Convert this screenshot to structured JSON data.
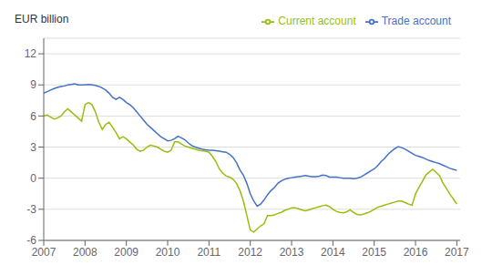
{
  "chart_data": {
    "type": "line",
    "ylabel": "EUR billion",
    "x": [
      2007.0,
      2007.083,
      2007.167,
      2007.25,
      2007.333,
      2007.417,
      2007.5,
      2007.583,
      2007.667,
      2007.75,
      2007.833,
      2007.917,
      2008.0,
      2008.083,
      2008.167,
      2008.25,
      2008.333,
      2008.417,
      2008.5,
      2008.583,
      2008.667,
      2008.75,
      2008.833,
      2008.917,
      2009.0,
      2009.083,
      2009.167,
      2009.25,
      2009.333,
      2009.417,
      2009.5,
      2009.583,
      2009.667,
      2009.75,
      2009.833,
      2009.917,
      2010.0,
      2010.083,
      2010.167,
      2010.25,
      2010.333,
      2010.417,
      2010.5,
      2010.583,
      2010.667,
      2010.75,
      2010.833,
      2010.917,
      2011.0,
      2011.083,
      2011.167,
      2011.25,
      2011.333,
      2011.417,
      2011.5,
      2011.583,
      2011.667,
      2011.75,
      2011.833,
      2011.917,
      2012.0,
      2012.083,
      2012.167,
      2012.25,
      2012.333,
      2012.417,
      2012.5,
      2012.583,
      2012.667,
      2012.75,
      2012.833,
      2012.917,
      2013.0,
      2013.083,
      2013.167,
      2013.25,
      2013.333,
      2013.417,
      2013.5,
      2013.583,
      2013.667,
      2013.75,
      2013.833,
      2013.917,
      2014.0,
      2014.083,
      2014.167,
      2014.25,
      2014.333,
      2014.417,
      2014.5,
      2014.583,
      2014.667,
      2014.75,
      2014.833,
      2014.917,
      2015.0,
      2015.083,
      2015.167,
      2015.25,
      2015.333,
      2015.417,
      2015.5,
      2015.583,
      2015.667,
      2015.75,
      2015.833,
      2015.917,
      2016.0,
      2016.083,
      2016.167,
      2016.25,
      2016.333,
      2016.417,
      2016.5,
      2016.583,
      2016.667,
      2016.75,
      2016.833,
      2016.917,
      2017.0
    ],
    "series": [
      {
        "name": "Trade account",
        "color": "#4472C4",
        "values": [
          8.2,
          8.35,
          8.5,
          8.65,
          8.75,
          8.85,
          8.9,
          9.0,
          9.05,
          9.1,
          9.0,
          9.0,
          9.0,
          9.05,
          9.0,
          8.95,
          8.85,
          8.7,
          8.5,
          8.2,
          7.8,
          7.6,
          7.8,
          7.6,
          7.3,
          7.1,
          6.8,
          6.4,
          6.0,
          5.6,
          5.2,
          4.9,
          4.6,
          4.3,
          4.0,
          3.8,
          3.6,
          3.65,
          3.8,
          4.05,
          3.9,
          3.7,
          3.4,
          3.15,
          3.0,
          2.9,
          2.8,
          2.75,
          2.7,
          2.7,
          2.65,
          2.6,
          2.55,
          2.5,
          2.3,
          2.0,
          1.5,
          0.8,
          0.3,
          -0.5,
          -1.5,
          -2.2,
          -2.7,
          -2.5,
          -2.1,
          -1.6,
          -1.2,
          -0.9,
          -0.5,
          -0.25,
          -0.1,
          0.0,
          0.05,
          0.1,
          0.15,
          0.2,
          0.25,
          0.2,
          0.15,
          0.15,
          0.2,
          0.3,
          0.25,
          0.1,
          0.1,
          0.1,
          0.05,
          0.0,
          0.0,
          0.0,
          -0.05,
          0.0,
          0.1,
          0.3,
          0.5,
          0.7,
          0.9,
          1.2,
          1.6,
          1.9,
          2.3,
          2.6,
          2.85,
          3.05,
          2.95,
          2.8,
          2.6,
          2.4,
          2.2,
          2.1,
          2.0,
          1.85,
          1.7,
          1.6,
          1.5,
          1.4,
          1.25,
          1.1,
          0.95,
          0.85,
          0.75
        ]
      },
      {
        "name": "Current account",
        "color": "#97BF0D",
        "values": [
          6.0,
          6.1,
          5.9,
          5.7,
          5.8,
          6.0,
          6.4,
          6.7,
          6.4,
          6.1,
          5.8,
          5.5,
          7.1,
          7.3,
          7.1,
          6.4,
          5.4,
          4.7,
          5.2,
          5.4,
          4.9,
          4.4,
          3.8,
          4.0,
          3.8,
          3.5,
          3.2,
          2.8,
          2.6,
          2.7,
          3.0,
          3.2,
          3.1,
          3.0,
          2.8,
          2.6,
          2.5,
          2.7,
          3.5,
          3.5,
          3.3,
          3.1,
          3.0,
          2.9,
          2.8,
          2.7,
          2.65,
          2.6,
          2.5,
          2.1,
          1.6,
          0.9,
          0.5,
          0.2,
          0.1,
          -0.1,
          -0.5,
          -1.2,
          -2.2,
          -3.6,
          -5.0,
          -5.2,
          -4.9,
          -4.6,
          -4.4,
          -3.6,
          -3.6,
          -3.55,
          -3.4,
          -3.3,
          -3.1,
          -3.0,
          -2.85,
          -2.85,
          -2.95,
          -3.05,
          -3.15,
          -3.05,
          -2.95,
          -2.85,
          -2.75,
          -2.65,
          -2.6,
          -2.75,
          -3.0,
          -3.2,
          -3.3,
          -3.35,
          -3.25,
          -3.05,
          -3.3,
          -3.5,
          -3.55,
          -3.45,
          -3.35,
          -3.2,
          -3.0,
          -2.8,
          -2.7,
          -2.6,
          -2.5,
          -2.4,
          -2.3,
          -2.2,
          -2.2,
          -2.35,
          -2.5,
          -2.6,
          -1.5,
          -0.9,
          -0.3,
          0.3,
          0.6,
          0.85,
          0.55,
          0.25,
          -0.5,
          -1.0,
          -1.55,
          -2.0,
          -2.5
        ]
      }
    ],
    "xlim": [
      2007,
      2017.08
    ],
    "xticks": [
      2007,
      2008,
      2009,
      2010,
      2011,
      2012,
      2013,
      2014,
      2015,
      2016,
      2017
    ],
    "ylim": [
      -6,
      13.5
    ],
    "yticks": [
      -6,
      -3,
      0,
      3,
      6,
      9,
      12
    ],
    "grid": "y",
    "legend": "upper right"
  }
}
